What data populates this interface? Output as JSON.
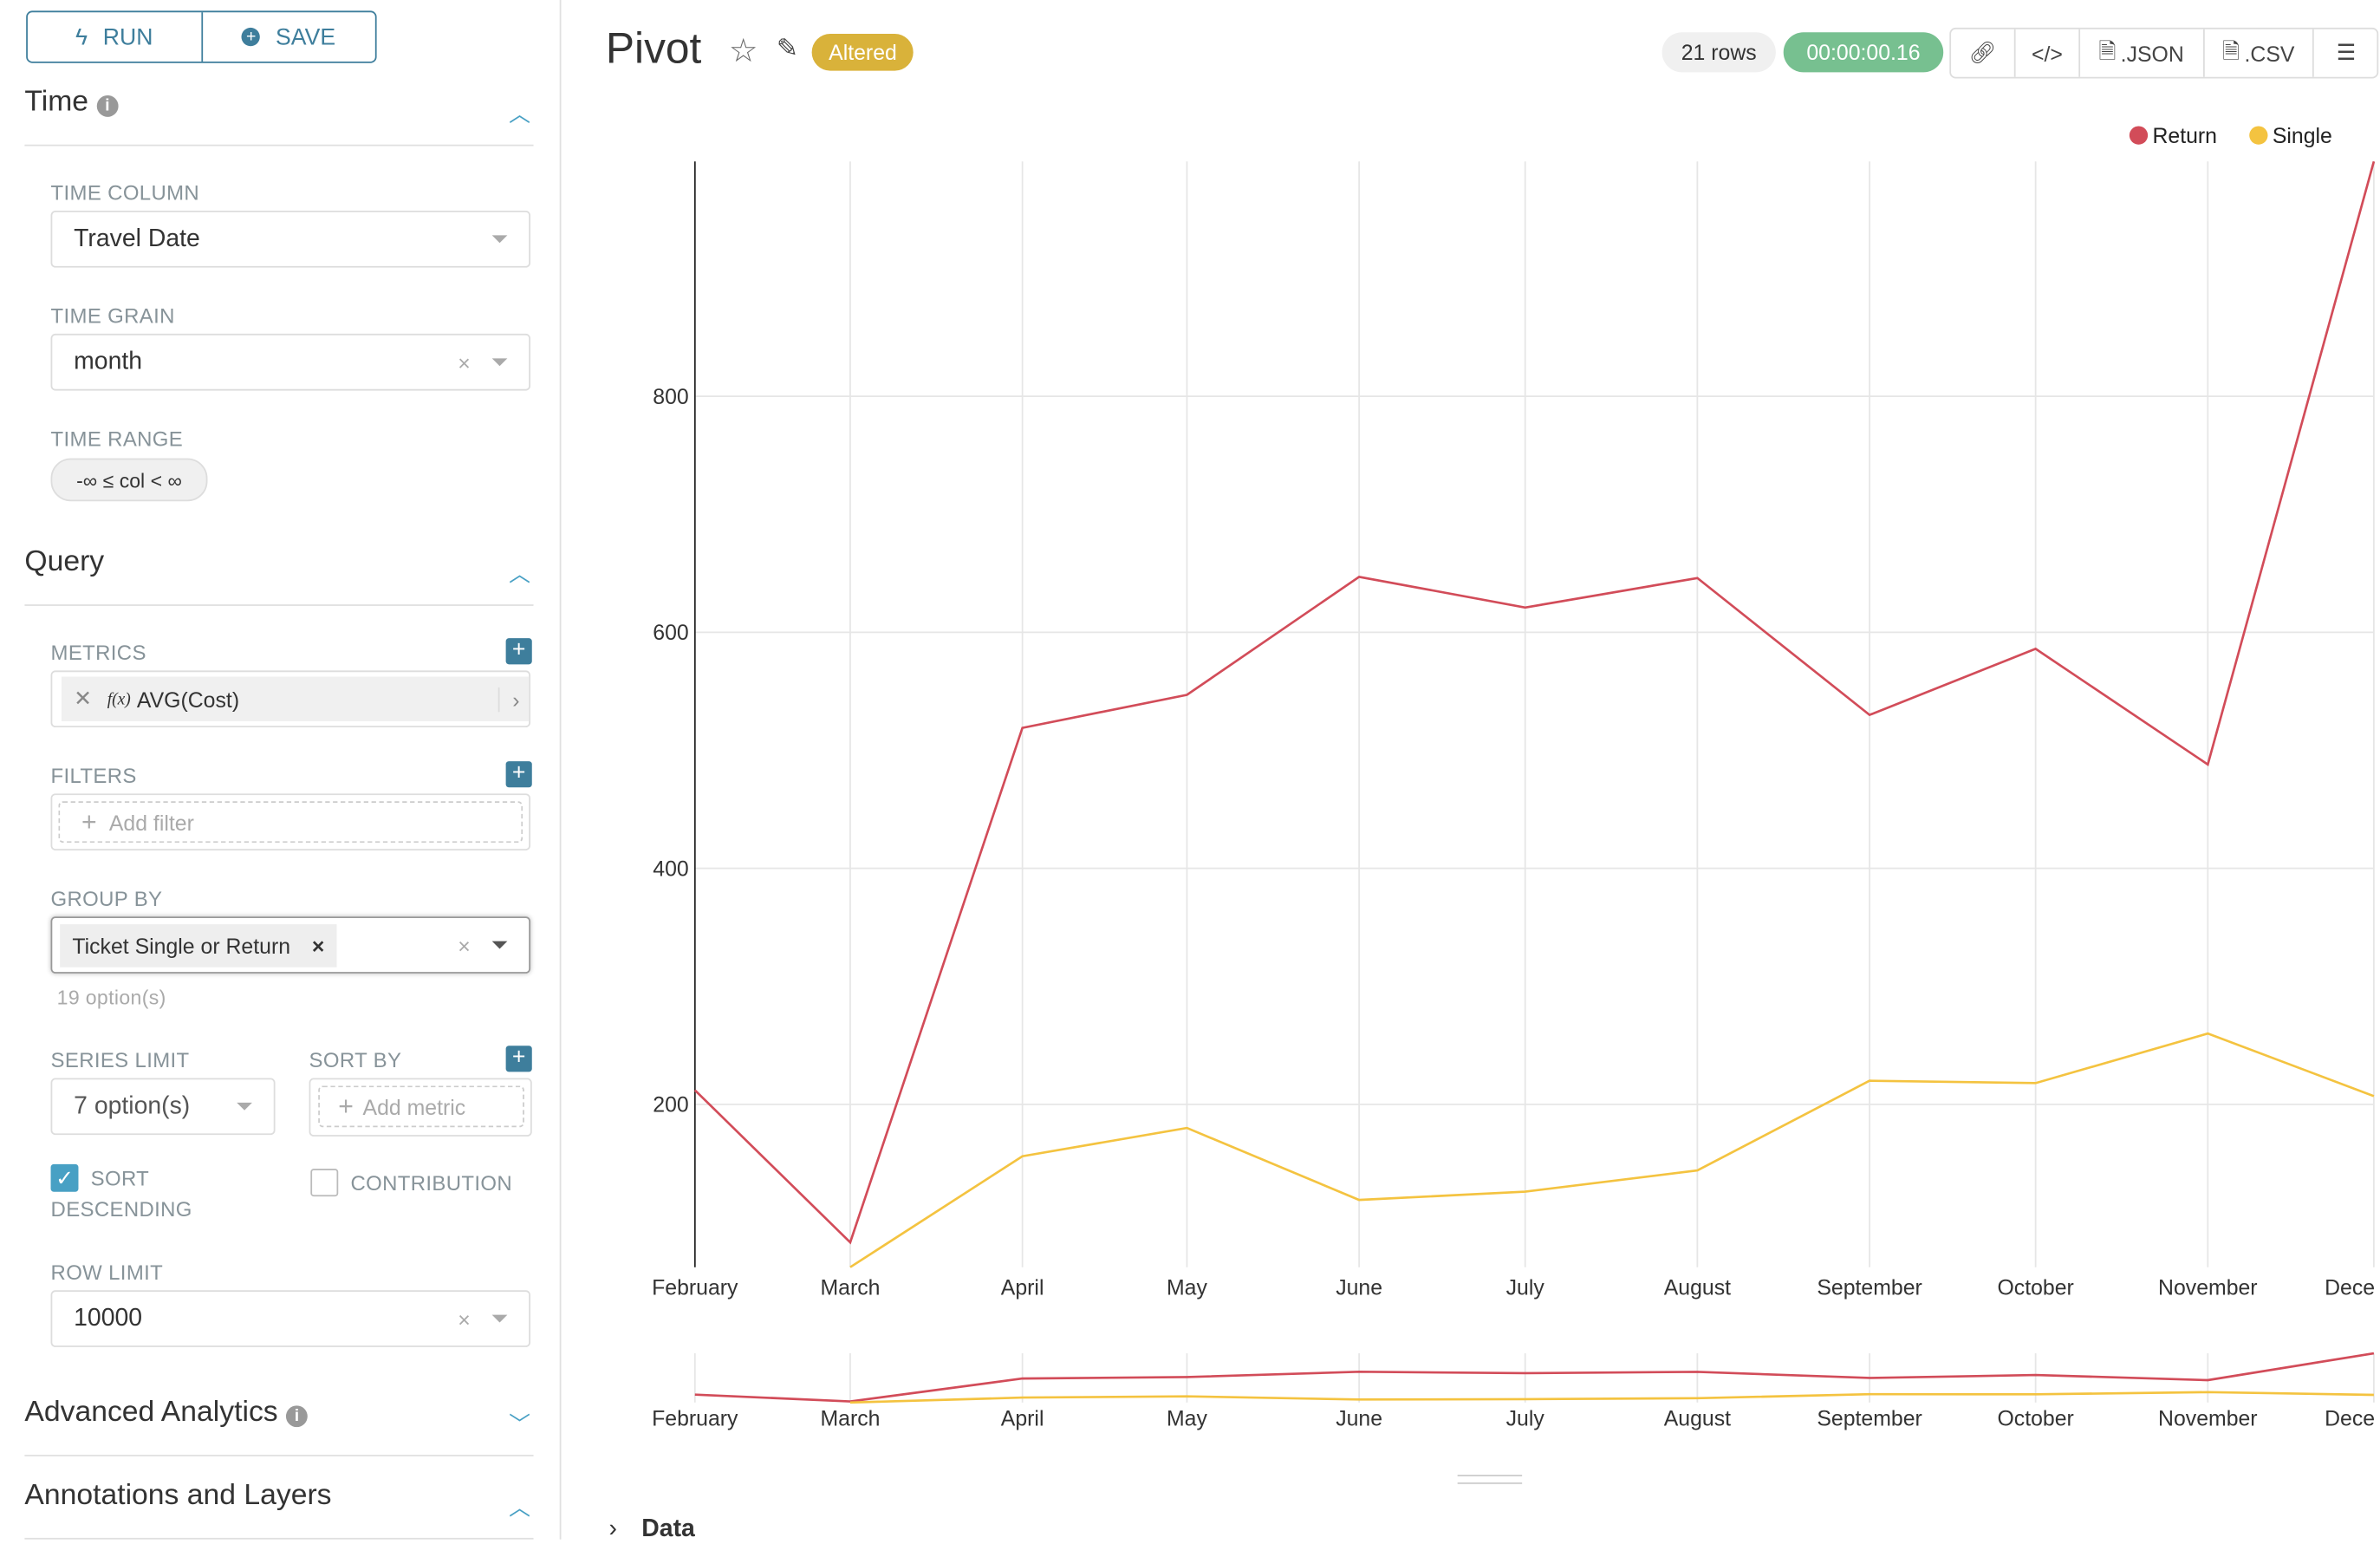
{
  "sidebar": {
    "run_label": "RUN",
    "save_label": "SAVE",
    "time": {
      "title": "Time",
      "time_column_label": "TIME COLUMN",
      "time_column_value": "Travel Date",
      "time_grain_label": "TIME GRAIN",
      "time_grain_value": "month",
      "time_range_label": "TIME RANGE",
      "time_range_value": "-∞ ≤ col < ∞"
    },
    "query": {
      "title": "Query",
      "metrics_label": "METRICS",
      "metric_value": "AVG(Cost)",
      "metric_fx": "f(x)",
      "filters_label": "FILTERS",
      "add_filter": "Add filter",
      "group_by_label": "GROUP BY",
      "group_by_tag": "Ticket Single or Return",
      "group_by_hint": "19 option(s)",
      "series_limit_label": "SERIES LIMIT",
      "series_limit_value": "7 option(s)",
      "sort_by_label": "SORT BY",
      "add_metric": "Add metric",
      "sort_desc_label": "SORT",
      "sort_desc_label2": "DESCENDING",
      "sort_desc_checked": true,
      "contribution_label": "CONTRIBUTION",
      "contribution_checked": false,
      "row_limit_label": "ROW LIMIT",
      "row_limit_value": "10000"
    },
    "advanced_title": "Advanced Analytics",
    "annotations_title": "Annotations and Layers"
  },
  "header": {
    "title": "Pivot",
    "status_badge": "Altered",
    "rows": "21 rows",
    "duration": "00:00:00.16",
    "json_label": ".JSON",
    "csv_label": ".CSV"
  },
  "colors": {
    "accent": "#3e7e9c",
    "return": "#d24c59",
    "single": "#f4c340",
    "altered": "#d9b23a",
    "duration": "#77c090"
  },
  "data_toggle": "Data",
  "chart_data": {
    "type": "line",
    "categories": [
      "February",
      "March",
      "April",
      "May",
      "June",
      "July",
      "August",
      "September",
      "October",
      "November",
      "Dece"
    ],
    "yticks": [
      200,
      400,
      600,
      800
    ],
    "ylim": [
      62,
      999
    ],
    "legend": "top-right",
    "grid": true,
    "series": [
      {
        "name": "Return",
        "color": "#d24c59",
        "values": [
          212,
          83,
          519,
          547,
          647,
          621,
          646,
          530,
          586,
          488,
          999
        ]
      },
      {
        "name": "Single",
        "color": "#f4c340",
        "values": [
          null,
          62,
          156,
          180,
          119,
          126,
          144,
          220,
          218,
          260,
          207
        ]
      }
    ]
  }
}
